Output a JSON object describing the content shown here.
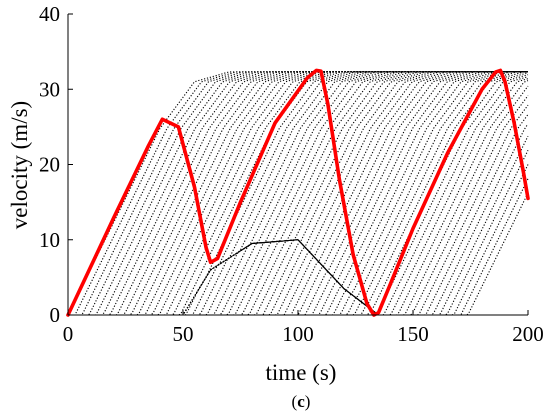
{
  "chart_data": {
    "type": "line",
    "title": "",
    "xlabel": "time (s)",
    "ylabel": "velocity (m/s)",
    "xlim": [
      0,
      200
    ],
    "ylim": [
      0,
      40
    ],
    "xticks": [
      "0",
      "50",
      "100",
      "150",
      "200"
    ],
    "yticks": [
      "0",
      "10",
      "20",
      "30",
      "40"
    ],
    "grid": false,
    "legend": "none",
    "caption_prefix": "(",
    "caption_letter": "c",
    "caption_suffix": ")",
    "vehicle_bundle": {
      "color": "#000000",
      "style": "dotted",
      "vehicle_count": 58,
      "start_delay_spacing_s": 3.05,
      "accel_ms2": 0.62,
      "vmax_ms": 32.5,
      "profile": [
        [
          0,
          0
        ],
        [
          40,
          24.8
        ],
        [
          55,
          31.0
        ],
        [
          70,
          32.3
        ],
        [
          200,
          32.3
        ]
      ],
      "lower_envelope": [
        [
          0,
          0
        ],
        [
          50,
          0
        ],
        [
          62,
          6.0
        ],
        [
          80,
          9.5
        ],
        [
          100,
          10
        ],
        [
          120,
          3.5
        ],
        [
          135,
          0
        ],
        [
          200,
          0
        ]
      ]
    },
    "series": [
      {
        "color": "#ff0000",
        "x": [
          0,
          20,
          35,
          41,
          48,
          55,
          60,
          62,
          65,
          75,
          90,
          104,
          108,
          110,
          113,
          118,
          124,
          130,
          133,
          135,
          140,
          150,
          165,
          180,
          186,
          188,
          190,
          194,
          198,
          200
        ],
        "values": [
          0,
          13,
          22.5,
          26,
          25,
          17,
          9,
          7,
          7.5,
          15,
          25.5,
          31.5,
          32.5,
          32.4,
          28,
          18,
          8,
          1.5,
          0,
          0.3,
          4,
          11.5,
          21.5,
          30,
          32.3,
          32.5,
          31,
          25.5,
          19,
          15.5
        ]
      }
    ]
  }
}
